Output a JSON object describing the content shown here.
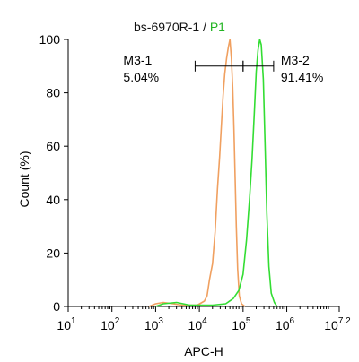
{
  "chart_data": {
    "type": "line",
    "title_prefix": "bs-6970R-1 / ",
    "title_accent": "P1",
    "xlabel": "APC-H",
    "ylabel": "Count  (%)",
    "x_scale": "log10",
    "xlim": [
      10,
      15848932
    ],
    "ylim": [
      0,
      100
    ],
    "y_ticks": [
      0,
      20,
      40,
      60,
      80,
      100
    ],
    "x_ticks": [
      {
        "value": 10,
        "base": "10",
        "exp": "1"
      },
      {
        "value": 100,
        "base": "10",
        "exp": "2"
      },
      {
        "value": 1000,
        "base": "10",
        "exp": "3"
      },
      {
        "value": 10000,
        "base": "10",
        "exp": "4"
      },
      {
        "value": 100000,
        "base": "10",
        "exp": "5"
      },
      {
        "value": 1000000,
        "base": "10",
        "exp": "6"
      },
      {
        "value": 15848932,
        "base": "10",
        "exp": "7.2"
      }
    ],
    "colors": {
      "orange": "#f0a060",
      "green": "#33dd33",
      "axis": "#000000"
    },
    "series": [
      {
        "color": "#f0a060",
        "points": [
          [
            700,
            0
          ],
          [
            1000,
            1
          ],
          [
            1500,
            1.5
          ],
          [
            2500,
            1
          ],
          [
            4000,
            0.5
          ],
          [
            9000,
            0.5
          ],
          [
            13000,
            2
          ],
          [
            15000,
            4
          ],
          [
            17000,
            10
          ],
          [
            20000,
            16
          ],
          [
            23000,
            28
          ],
          [
            26000,
            44
          ],
          [
            29000,
            56
          ],
          [
            32000,
            68
          ],
          [
            35000,
            79
          ],
          [
            38000,
            87
          ],
          [
            42000,
            93
          ],
          [
            46000,
            97
          ],
          [
            50000,
            100
          ],
          [
            54000,
            93
          ],
          [
            58000,
            82
          ],
          [
            62000,
            66
          ],
          [
            66000,
            48
          ],
          [
            70000,
            30
          ],
          [
            75000,
            14
          ],
          [
            82000,
            4
          ],
          [
            92000,
            1
          ],
          [
            110000,
            0
          ]
        ]
      },
      {
        "color": "#33dd33",
        "points": [
          [
            1000,
            0
          ],
          [
            1500,
            1
          ],
          [
            3000,
            1.5
          ],
          [
            6000,
            0.5
          ],
          [
            20000,
            0.5
          ],
          [
            40000,
            1
          ],
          [
            60000,
            3
          ],
          [
            80000,
            6
          ],
          [
            100000,
            12
          ],
          [
            120000,
            25
          ],
          [
            140000,
            40
          ],
          [
            160000,
            55
          ],
          [
            180000,
            72
          ],
          [
            200000,
            88
          ],
          [
            220000,
            96
          ],
          [
            240000,
            100
          ],
          [
            260000,
            98
          ],
          [
            290000,
            85
          ],
          [
            320000,
            60
          ],
          [
            350000,
            35
          ],
          [
            390000,
            15
          ],
          [
            440000,
            5
          ],
          [
            520000,
            1.5
          ],
          [
            600000,
            0
          ]
        ]
      }
    ],
    "gates": [
      {
        "label": "M3-1",
        "percent": "5.04%",
        "range": [
          8000,
          100000
        ],
        "label_side": "left"
      },
      {
        "label": "M3-2",
        "percent": "91.41%",
        "range": [
          100000,
          500000
        ],
        "label_side": "right"
      }
    ],
    "gate_y": 90
  }
}
